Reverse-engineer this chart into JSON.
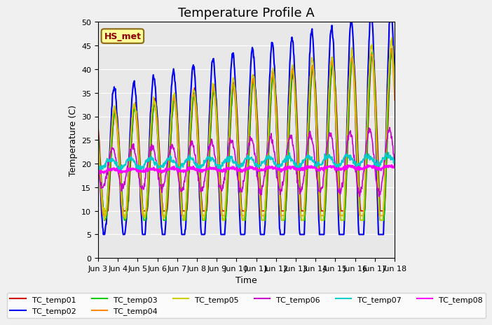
{
  "title": "Temperature Profile A",
  "ylabel": "Temperature (C)",
  "xlabel": "Time",
  "ylim": [
    0,
    50
  ],
  "annotation": "HS_met",
  "series_colors": {
    "TC_temp01": "#cc0000",
    "TC_temp02": "#0000ee",
    "TC_temp03": "#00cc00",
    "TC_temp04": "#ff8800",
    "TC_temp05": "#cccc00",
    "TC_temp06": "#cc00cc",
    "TC_temp07": "#00cccc",
    "TC_temp08": "#ff00ff"
  },
  "series_names": [
    "TC_temp01",
    "TC_temp02",
    "TC_temp03",
    "TC_temp04",
    "TC_temp05",
    "TC_temp06",
    "TC_temp07",
    "TC_temp08"
  ],
  "background_color": "#e8e8e8",
  "xtick_labels": [
    "Jun 3",
    "Jun 4",
    "Jun 5",
    "Jun 6",
    "Jun 7",
    "Jun 8",
    "Jun 9",
    "Jun 10",
    "Jun 11",
    "Jun 12",
    "Jun 13",
    "Jun 14",
    "Jun 15",
    "Jun 16",
    "Jun 17",
    "Jun 18"
  ],
  "title_fontsize": 13,
  "axis_fontsize": 9,
  "legend_fontsize": 8,
  "n_days": 15,
  "pts_per_day": 48
}
